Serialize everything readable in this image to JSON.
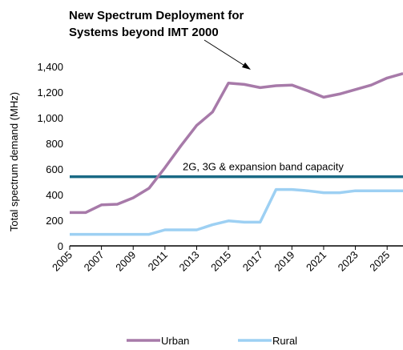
{
  "chart_data": {
    "type": "line",
    "title": "",
    "xlabel": "",
    "ylabel": "Total spectrum demand (MHz)",
    "x": [
      2005,
      2006,
      2007,
      2008,
      2009,
      2010,
      2011,
      2012,
      2013,
      2014,
      2015,
      2016,
      2017,
      2018,
      2019,
      2020,
      2021,
      2022,
      2023,
      2024,
      2025,
      2026
    ],
    "x_tick_labels": [
      "2005",
      "2007",
      "2009",
      "2011",
      "2013",
      "2015",
      "2017",
      "2019",
      "2021",
      "2023",
      "2025"
    ],
    "y_tick_labels": [
      "0",
      "200",
      "400",
      "600",
      "800",
      "1,000",
      "1,200",
      "1,400"
    ],
    "ylim": [
      0,
      1400
    ],
    "xlim": [
      2005,
      2026
    ],
    "grid": false,
    "legend_position": "bottom",
    "series": [
      {
        "name": "Urban",
        "color": "#a77aa9",
        "values": [
          260,
          260,
          320,
          325,
          375,
          450,
          610,
          780,
          940,
          1045,
          1270,
          1260,
          1235,
          1250,
          1255,
          1210,
          1160,
          1185,
          1220,
          1255,
          1310,
          1345
        ]
      },
      {
        "name": "Rural",
        "color": "#9dd0f3",
        "values": [
          90,
          90,
          90,
          90,
          90,
          90,
          125,
          125,
          125,
          165,
          195,
          185,
          185,
          440,
          440,
          430,
          415,
          415,
          430,
          430,
          430,
          430
        ]
      }
    ],
    "reference_lines": [
      {
        "label": "2G, 3G & expansion band capacity",
        "value": 540,
        "color": "#1a6a85"
      }
    ],
    "annotations": [
      {
        "text_lines": [
          "New Spectrum Deployment for",
          "Systems beyond IMT 2000"
        ],
        "points_to_year": 2017
      }
    ]
  }
}
